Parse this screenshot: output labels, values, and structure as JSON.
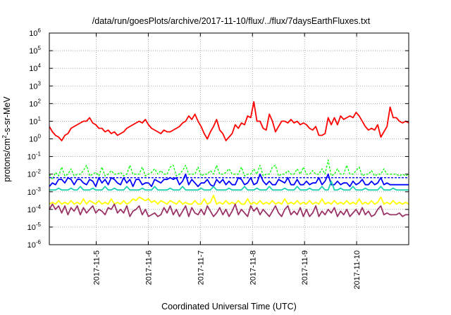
{
  "chart_data": {
    "type": "line",
    "title": "/data/run/goesPlots/archive/2017-11-10/flux/../flux/7daysEarthFluxes.txt",
    "xlabel": "Coordinated Universal Time (UTC)",
    "ylabel_parts": [
      "protons/cm",
      "2",
      "-s-sr-MeV"
    ],
    "y_scale": "log",
    "ylim_exp": [
      -6,
      6
    ],
    "y_ticks": [
      {
        "base": "10",
        "exp": "-6"
      },
      {
        "base": "10",
        "exp": "-5"
      },
      {
        "base": "10",
        "exp": "-4"
      },
      {
        "base": "10",
        "exp": "-3"
      },
      {
        "base": "10",
        "exp": "-2"
      },
      {
        "base": "10",
        "exp": "-1"
      },
      {
        "base": "10",
        "exp": "0"
      },
      {
        "base": "10",
        "exp": "1"
      },
      {
        "base": "10",
        "exp": "2"
      },
      {
        "base": "10",
        "exp": "3"
      },
      {
        "base": "10",
        "exp": "4"
      },
      {
        "base": "10",
        "exp": "5"
      },
      {
        "base": "10",
        "exp": "6"
      }
    ],
    "xlim_days": [
      4.1,
      11.0
    ],
    "x_ticks": [
      {
        "day": 5,
        "label": "2017-11-5"
      },
      {
        "day": 6,
        "label": "2017-11-6"
      },
      {
        "day": 7,
        "label": "2017-11-7"
      },
      {
        "day": 8,
        "label": "2017-11-8"
      },
      {
        "day": 9,
        "label": "2017-11-9"
      },
      {
        "day": 10,
        "label": "2017-11-10"
      }
    ],
    "grid": true,
    "series": [
      {
        "color": "#ff0000",
        "dashed": false,
        "log10": [
          0.7,
          0.4,
          0.2,
          0.1,
          -0.1,
          0.2,
          0.3,
          0.6,
          0.7,
          0.8,
          0.9,
          1.0,
          1.0,
          1.2,
          0.9,
          0.8,
          0.6,
          0.6,
          0.4,
          0.5,
          0.3,
          0.4,
          0.2,
          0.3,
          0.4,
          0.6,
          0.7,
          0.8,
          0.9,
          1.0,
          0.9,
          1.1,
          0.8,
          0.6,
          0.5,
          0.4,
          0.3,
          0.5,
          0.4,
          0.4,
          0.5,
          0.6,
          0.7,
          0.9,
          1.0,
          1.3,
          1.1,
          1.4,
          1.0,
          0.7,
          0.3,
          0.0,
          0.4,
          0.7,
          1.1,
          0.5,
          0.3,
          -0.1,
          0.1,
          0.3,
          0.8,
          0.6,
          0.9,
          0.8,
          1.3,
          1.2,
          2.1,
          1.0,
          1.0,
          0.6,
          0.5,
          1.4,
          1.0,
          0.4,
          0.7,
          1.0,
          1.0,
          0.9,
          1.1,
          0.9,
          1.0,
          0.8,
          0.9,
          0.8,
          0.6,
          0.5,
          0.7,
          0.2,
          0.2,
          0.3,
          1.2,
          0.8,
          1.2,
          0.8,
          1.3,
          1.1,
          1.2,
          1.3,
          1.2,
          1.5,
          1.3,
          1.0,
          0.7,
          0.5,
          0.6,
          0.5,
          0.8,
          0.1,
          0.4,
          0.7,
          1.8,
          1.2,
          1.2,
          1.0,
          0.9,
          1.0,
          0.9
        ]
      },
      {
        "color": "#00ff00",
        "dashed": true,
        "log10": [
          -2.0,
          -2.3,
          -1.9,
          -2.1,
          -1.6,
          -2.1,
          -2.0,
          -1.7,
          -2.1,
          -2.0,
          -2.0,
          -1.8,
          -1.5,
          -2.1,
          -2.0,
          -1.9,
          -2.1,
          -1.6,
          -2.1,
          -2.0,
          -1.8,
          -2.0,
          -2.0,
          -1.9,
          -2.1,
          -2.0,
          -1.5,
          -2.0,
          -2.0,
          -2.0,
          -1.6,
          -2.1,
          -2.0,
          -1.9,
          -1.7,
          -2.0,
          -1.8,
          -2.0,
          -2.0,
          -1.6,
          -1.5,
          -2.1,
          -2.0,
          -1.8,
          -1.5,
          -2.0,
          -2.0,
          -2.0,
          -1.6,
          -2.1,
          -2.0,
          -2.0,
          -1.8,
          -2.0,
          -1.5,
          -2.0,
          -2.0,
          -1.9,
          -1.7,
          -2.0,
          -2.0,
          -2.0,
          -1.6,
          -2.1,
          -2.0,
          -2.0,
          -1.7,
          -2.0,
          -1.5,
          -2.1,
          -2.0,
          -2.0,
          -1.6,
          -1.5,
          -2.1,
          -2.0,
          -2.0,
          -1.8,
          -2.0,
          -2.0,
          -1.7,
          -2.0,
          -1.6,
          -2.0,
          -2.0,
          -1.8,
          -2.0,
          -2.0,
          -1.7,
          -2.0,
          -1.2,
          -2.1,
          -2.0,
          -1.7,
          -2.0,
          -2.0,
          -1.5,
          -2.0,
          -2.0,
          -1.8,
          -1.6,
          -2.1,
          -2.0,
          -2.0,
          -1.8,
          -2.1,
          -2.0,
          -2.0,
          -1.7,
          -2.0,
          -2.0,
          -2.0,
          -2.0,
          -2.1,
          -2.0,
          -2.1,
          -2.0
        ]
      },
      {
        "color": "#0000ff",
        "dashed": false,
        "log10": [
          -2.7,
          -2.5,
          -2.6,
          -2.3,
          -2.3,
          -2.5,
          -2.2,
          -2.3,
          -2.6,
          -2.3,
          -2.3,
          -2.5,
          -2.6,
          -2.3,
          -2.4,
          -2.7,
          -2.2,
          -2.5,
          -2.3,
          -2.6,
          -2.2,
          -2.3,
          -2.5,
          -2.6,
          -2.2,
          -2.5,
          -2.3,
          -2.7,
          -2.3,
          -2.3,
          -2.6,
          -2.5,
          -2.5,
          -2.7,
          -2.3,
          -2.4,
          -2.5,
          -2.3,
          -2.3,
          -2.2,
          -2.3,
          -2.2,
          -2.6,
          -2.4,
          -2.0,
          -2.6,
          -2.3,
          -2.5,
          -2.7,
          -2.5,
          -2.5,
          -2.3,
          -2.6,
          -2.7,
          -2.3,
          -2.5,
          -2.3,
          -2.6,
          -2.4,
          -2.6,
          -2.6,
          -2.2,
          -2.3,
          -2.6,
          -2.5,
          -2.2,
          -2.6,
          -2.5,
          -2.0,
          -2.4,
          -2.6,
          -2.4,
          -2.6,
          -2.6,
          -2.3,
          -2.4,
          -2.5,
          -2.2,
          -2.6,
          -2.6,
          -2.3,
          -2.6,
          -2.6,
          -2.4,
          -2.6,
          -2.5,
          -2.5,
          -2.2,
          -2.6,
          -2.4,
          -2.0,
          -2.6,
          -2.6,
          -2.4,
          -2.6,
          -2.5,
          -2.5,
          -2.7,
          -2.4,
          -2.6,
          -2.5,
          -2.3,
          -2.6,
          -2.6,
          -2.4,
          -2.6,
          -2.5,
          -2.2,
          -2.6,
          -2.5,
          -2.6,
          -2.6,
          -2.6,
          -2.6,
          -2.6,
          -2.6,
          -2.6
        ]
      },
      {
        "color": "#0000ff",
        "dashed": true,
        "log10": [
          -2.2,
          -2.2,
          -2.2,
          -2.2,
          -2.2,
          -2.2,
          -2.2,
          -2.2,
          -2.2,
          -2.2,
          -2.2,
          -2.2,
          -2.2,
          -2.2,
          -2.2,
          -2.2,
          -2.2,
          -2.2,
          -2.2,
          -2.2,
          -2.2,
          -2.2,
          -2.2,
          -2.2,
          -2.2,
          -2.2,
          -2.2,
          -2.2,
          -2.2,
          -2.2,
          -2.2,
          -2.2,
          -2.2,
          -2.2,
          -2.2,
          -2.2,
          -2.2,
          -2.2,
          -2.2,
          -2.2,
          -2.2,
          -2.2,
          -2.2,
          -2.2,
          -2.2,
          -2.2,
          -2.2,
          -2.2,
          -2.2,
          -2.2,
          -2.2,
          -2.2,
          -2.2,
          -2.2,
          -2.2,
          -2.2,
          -2.2,
          -2.2,
          -2.2,
          -2.2,
          -2.2,
          -2.2,
          -2.2,
          -2.2,
          -2.2,
          -2.2,
          -2.2,
          -2.2,
          -2.2,
          -2.2,
          -2.2,
          -2.2,
          -2.2,
          -2.2,
          -2.2,
          -2.2,
          -2.2,
          -2.2,
          -2.2,
          -2.2,
          -2.2,
          -2.2,
          -2.2,
          -2.2,
          -2.2,
          -2.2,
          -2.2,
          -2.2,
          -2.2,
          -2.2,
          -2.2,
          -2.2,
          -2.2,
          -2.2,
          -2.2,
          -2.2,
          -2.2,
          -2.2,
          -2.2,
          -2.2,
          -2.2,
          -2.2,
          -2.2,
          -2.2,
          -2.2,
          -2.2,
          -2.2,
          -2.2,
          -2.2,
          -2.2,
          -2.2,
          -2.2,
          -2.2,
          -2.2,
          -2.2,
          -2.2,
          -2.2
        ]
      },
      {
        "color": "#20d0b0",
        "dashed": false,
        "log10": [
          -2.9,
          -2.9,
          -2.9,
          -2.8,
          -2.9,
          -2.9,
          -2.9,
          -2.8,
          -2.9,
          -2.9,
          -2.7,
          -2.9,
          -2.9,
          -2.9,
          -2.8,
          -2.9,
          -2.9,
          -2.9,
          -2.7,
          -2.9,
          -2.9,
          -2.8,
          -2.9,
          -2.9,
          -2.9,
          -2.7,
          -2.9,
          -2.9,
          -2.9,
          -2.9,
          -2.8,
          -2.9,
          -2.9,
          -2.9,
          -2.7,
          -2.9,
          -2.9,
          -2.9,
          -2.9,
          -2.8,
          -2.9,
          -2.9,
          -2.9,
          -2.7,
          -2.9,
          -2.9,
          -2.9,
          -2.9,
          -2.9,
          -2.8,
          -2.9,
          -2.9,
          -2.9,
          -2.7,
          -2.9,
          -2.9,
          -2.9,
          -2.9,
          -2.8,
          -2.9,
          -2.9,
          -2.9,
          -2.9,
          -2.7,
          -2.9,
          -2.9,
          -2.9,
          -2.8,
          -2.9,
          -2.9,
          -2.9,
          -2.7,
          -2.9,
          -2.9,
          -2.9,
          -2.9,
          -2.8,
          -2.9,
          -2.9,
          -2.9,
          -2.7,
          -2.9,
          -2.9,
          -2.9,
          -2.8,
          -2.9,
          -2.9,
          -2.9,
          -2.7,
          -2.9,
          -2.9,
          -2.4,
          -2.9,
          -2.9,
          -2.8,
          -2.9,
          -2.9,
          -2.9,
          -2.7,
          -2.9,
          -2.9,
          -2.9,
          -2.8,
          -2.9,
          -2.9,
          -2.9,
          -2.9,
          -2.7,
          -2.9,
          -2.9,
          -2.9,
          -2.8,
          -2.9,
          -2.9,
          -2.9,
          -2.9,
          -2.9
        ]
      },
      {
        "color": "#ffff00",
        "dashed": false,
        "log10": [
          -3.7,
          -3.6,
          -3.7,
          -3.5,
          -3.7,
          -3.6,
          -3.7,
          -3.5,
          -3.7,
          -3.6,
          -3.7,
          -3.4,
          -3.7,
          -3.5,
          -3.6,
          -3.7,
          -3.5,
          -3.7,
          -3.6,
          -3.7,
          -3.4,
          -3.7,
          -3.6,
          -3.7,
          -3.5,
          -3.7,
          -3.6,
          -3.4,
          -3.5,
          -3.3,
          -3.4,
          -3.5,
          -3.4,
          -3.6,
          -3.5,
          -3.7,
          -3.5,
          -3.6,
          -3.7,
          -3.5,
          -3.6,
          -3.7,
          -3.5,
          -3.7,
          -3.6,
          -3.7,
          -3.7,
          -3.5,
          -3.7,
          -3.7,
          -3.4,
          -3.7,
          -3.6,
          -3.2,
          -3.7,
          -3.6,
          -3.7,
          -3.5,
          -3.7,
          -3.6,
          -3.7,
          -3.5,
          -3.7,
          -3.7,
          -3.4,
          -3.7,
          -3.6,
          -3.7,
          -3.5,
          -3.7,
          -3.6,
          -3.7,
          -3.5,
          -3.7,
          -3.6,
          -3.7,
          -3.4,
          -3.7,
          -3.6,
          -3.7,
          -3.5,
          -3.7,
          -3.6,
          -3.7,
          -3.5,
          -3.7,
          -3.6,
          -3.7,
          -3.4,
          -3.7,
          -3.6,
          -3.7,
          -3.5,
          -3.7,
          -3.6,
          -3.7,
          -3.5,
          -3.7,
          -3.6,
          -3.7,
          -3.4,
          -3.7,
          -3.6,
          -3.7,
          -3.5,
          -3.7,
          -3.6,
          -3.3,
          -3.7,
          -3.6,
          -3.7,
          -3.5,
          -3.7,
          -3.6,
          -3.7,
          -3.6,
          -3.7
        ]
      },
      {
        "color": "#993366",
        "dashed": false,
        "log10": [
          -4.0,
          -3.7,
          -4.0,
          -3.8,
          -4.2,
          -3.8,
          -4.3,
          -3.9,
          -4.1,
          -3.8,
          -4.3,
          -3.9,
          -4.2,
          -4.0,
          -3.8,
          -4.2,
          -4.0,
          -4.1,
          -4.3,
          -3.9,
          -4.0,
          -3.7,
          -4.2,
          -4.0,
          -4.2,
          -3.8,
          -4.4,
          -4.1,
          -4.0,
          -3.8,
          -4.3,
          -4.0,
          -4.4,
          -4.3,
          -4.2,
          -4.4,
          -4.3,
          -3.9,
          -4.2,
          -3.8,
          -4.3,
          -4.0,
          -4.4,
          -4.1,
          -3.8,
          -4.4,
          -3.9,
          -4.2,
          -4.3,
          -4.0,
          -4.3,
          -3.8,
          -4.1,
          -4.4,
          -4.2,
          -3.9,
          -4.3,
          -4.0,
          -4.4,
          -4.1,
          -3.7,
          -4.3,
          -4.0,
          -4.2,
          -4.4,
          -3.8,
          -4.1,
          -3.9,
          -4.3,
          -4.0,
          -4.2,
          -4.4,
          -4.1,
          -3.8,
          -4.2,
          -4.4,
          -4.0,
          -3.8,
          -4.3,
          -4.1,
          -4.3,
          -3.9,
          -4.4,
          -4.0,
          -4.4,
          -4.2,
          -3.8,
          -4.4,
          -4.1,
          -4.3,
          -4.0,
          -4.2,
          -3.9,
          -4.4,
          -4.1,
          -4.3,
          -4.0,
          -4.4,
          -4.2,
          -4.0,
          -4.3,
          -3.9,
          -4.3,
          -4.1,
          -4.4,
          -4.3,
          -4.0,
          -3.8,
          -4.3,
          -4.2,
          -4.3,
          -4.3,
          -4.3,
          -4.2,
          -4.4,
          -4.3,
          -4.3
        ]
      }
    ]
  }
}
